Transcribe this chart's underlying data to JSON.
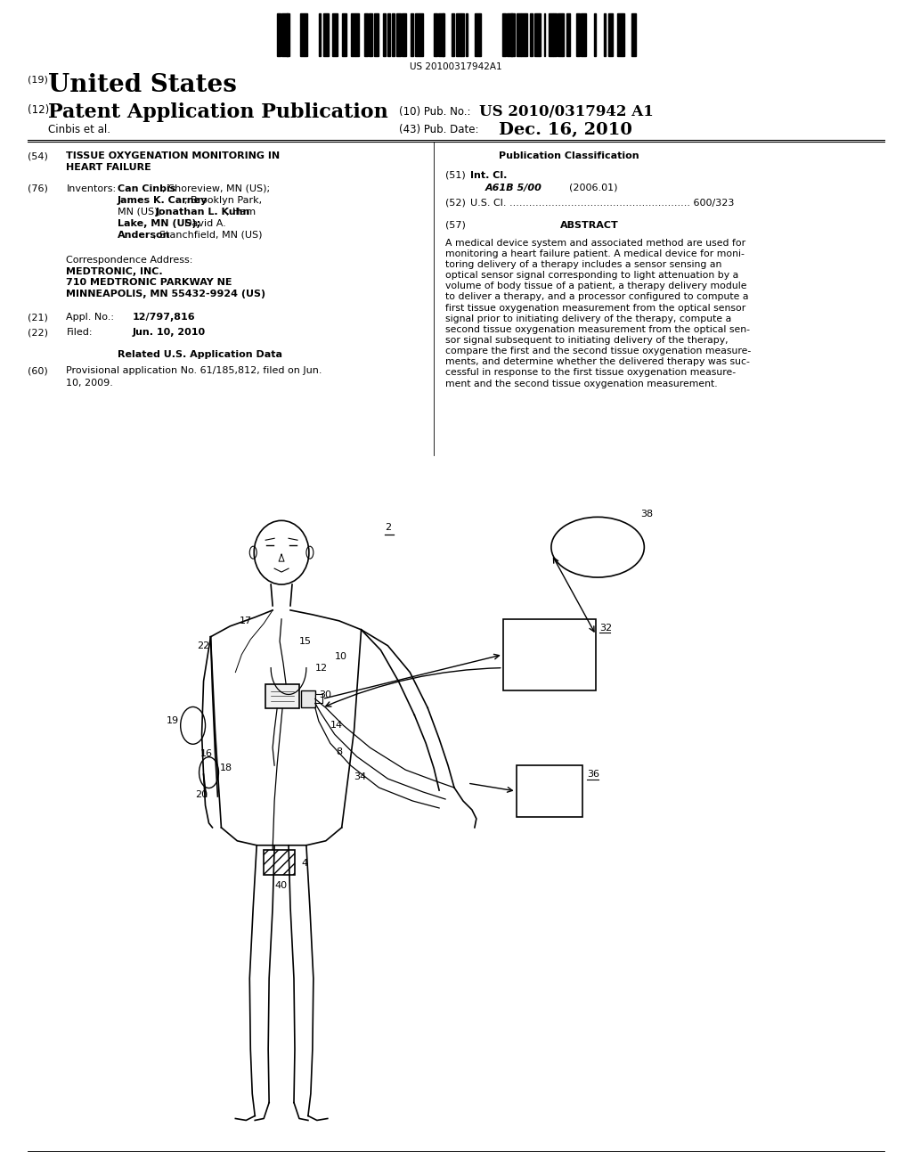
{
  "background_color": "#ffffff",
  "page_width": 10.24,
  "page_height": 13.2,
  "barcode_text": "US 20100317942A1",
  "patent_number_label": "(19)",
  "patent_number_title": "United States",
  "pub_type_label": "(12)",
  "pub_type_title": "Patent Application Publication",
  "pub_no_label": "(10) Pub. No.:",
  "pub_no_value": "US 2010/0317942 A1",
  "author": "Cinbis et al.",
  "pub_date_label": "(43) Pub. Date:",
  "pub_date_value": "Dec. 16, 2010",
  "title_label": "(54)",
  "title_line1": "TISSUE OXYGENATION MONITORING IN",
  "title_line2": "HEART FAILURE",
  "inventors_label": "(76)",
  "inventors_title": "Inventors:",
  "inventors_text": "Can Cinbis, Shoreview, MN (US);\nJames K. Carney, Brooklyn Park,\nMN (US); Jonathan L. Kuhn, Ham\nLake, MN (US); David A.\nAnderson, Stanchfield, MN (US)",
  "corr_header": "Correspondence Address:",
  "corr_name": "MEDTRONIC, INC.",
  "corr_addr1": "710 MEDTRONIC PARKWAY NE",
  "corr_addr2": "MINNEAPOLIS, MN 55432-9924 (US)",
  "appl_label": "(21)",
  "appl_title": "Appl. No.:",
  "appl_value": "12/797,816",
  "filed_label": "(22)",
  "filed_title": "Filed:",
  "filed_value": "Jun. 10, 2010",
  "related_header": "Related U.S. Application Data",
  "provisional_label": "(60)",
  "provisional_text": "Provisional application No. 61/185,812, filed on Jun.\n10, 2009.",
  "pub_class_header": "Publication Classification",
  "intcl_label": "(51)",
  "intcl_title": "Int. Cl.",
  "intcl_class": "A61B 5/00",
  "intcl_year": "(2006.01)",
  "uscl_label": "(52)",
  "uscl_title": "U.S. Cl.",
  "uscl_dots": "........................................................",
  "uscl_value": "600/323",
  "abstract_label": "(57)",
  "abstract_title": "ABSTRACT",
  "abstract_lines": [
    "A medical device system and associated method are used for",
    "monitoring a heart failure patient. A medical device for moni-",
    "toring delivery of a therapy includes a sensor sensing an",
    "optical sensor signal corresponding to light attenuation by a",
    "volume of body tissue of a patient, a therapy delivery module",
    "to deliver a therapy, and a processor configured to compute a",
    "first tissue oxygenation measurement from the optical sensor",
    "signal prior to initiating delivery of the therapy, compute a",
    "second tissue oxygenation measurement from the optical sen-",
    "sor signal subsequent to initiating delivery of the therapy,",
    "compare the first and the second tissue oxygenation measure-",
    "ments, and determine whether the delivered therapy was suc-",
    "cessful in response to the first tissue oxygenation measure-",
    "ment and the second tissue oxygenation measurement."
  ],
  "text_color": "#000000"
}
